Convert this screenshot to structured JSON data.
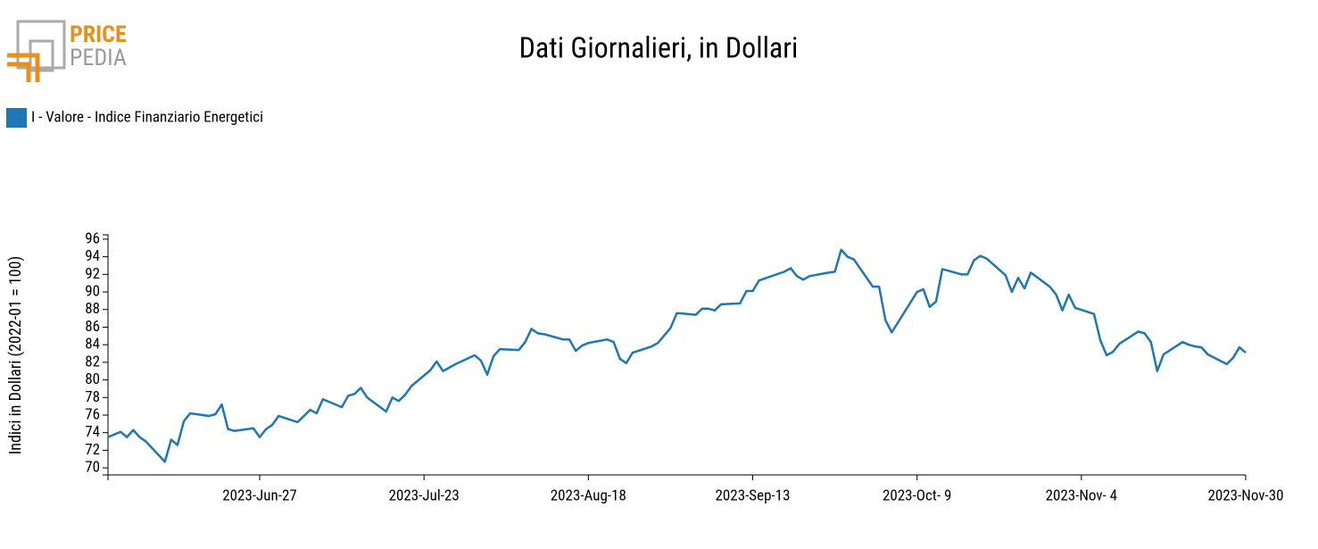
{
  "logo": {
    "top": "PRICE",
    "bottom": "PEDIA"
  },
  "chart_data": {
    "type": "line",
    "title": "Dati Giornalieri, in Dollari",
    "y_label": "Indici in Dollari (2022-01 = 100)",
    "legend_position": "top-left",
    "xlim": [
      "2023-06-03",
      "2023-11-30"
    ],
    "xticks": [
      {
        "value": "2023-06-27",
        "label": "2023-Jun-27"
      },
      {
        "value": "2023-07-23",
        "label": "2023-Jul-23"
      },
      {
        "value": "2023-08-18",
        "label": "2023-Aug-18"
      },
      {
        "value": "2023-09-13",
        "label": "2023-Sep-13"
      },
      {
        "value": "2023-10-09",
        "label": "2023-Oct- 9"
      },
      {
        "value": "2023-11-04",
        "label": "2023-Nov- 4"
      },
      {
        "value": "2023-11-30",
        "label": "2023-Nov-30"
      }
    ],
    "ylim": [
      69.2,
      96.5
    ],
    "yticks": [
      70,
      72,
      74,
      76,
      78,
      80,
      82,
      84,
      86,
      88,
      90,
      92,
      94,
      96
    ],
    "x": [
      "2023-06-03",
      "2023-06-05",
      "2023-06-06",
      "2023-06-07",
      "2023-06-08",
      "2023-06-09",
      "2023-06-12",
      "2023-06-13",
      "2023-06-14",
      "2023-06-15",
      "2023-06-16",
      "2023-06-19",
      "2023-06-20",
      "2023-06-21",
      "2023-06-22",
      "2023-06-23",
      "2023-06-26",
      "2023-06-27",
      "2023-06-28",
      "2023-06-29",
      "2023-06-30",
      "2023-07-03",
      "2023-07-05",
      "2023-07-06",
      "2023-07-07",
      "2023-07-10",
      "2023-07-11",
      "2023-07-12",
      "2023-07-13",
      "2023-07-14",
      "2023-07-17",
      "2023-07-18",
      "2023-07-19",
      "2023-07-20",
      "2023-07-21",
      "2023-07-24",
      "2023-07-25",
      "2023-07-26",
      "2023-07-28",
      "2023-07-31",
      "2023-08-01",
      "2023-08-02",
      "2023-08-03",
      "2023-08-04",
      "2023-08-07",
      "2023-08-08",
      "2023-08-09",
      "2023-08-10",
      "2023-08-11",
      "2023-08-14",
      "2023-08-15",
      "2023-08-16",
      "2023-08-17",
      "2023-08-18",
      "2023-08-21",
      "2023-08-22",
      "2023-08-23",
      "2023-08-24",
      "2023-08-25",
      "2023-08-28",
      "2023-08-29",
      "2023-08-31",
      "2023-09-01",
      "2023-09-04",
      "2023-09-05",
      "2023-09-06",
      "2023-09-07",
      "2023-09-08",
      "2023-09-11",
      "2023-09-12",
      "2023-09-13",
      "2023-09-14",
      "2023-09-18",
      "2023-09-19",
      "2023-09-20",
      "2023-09-21",
      "2023-09-22",
      "2023-09-25",
      "2023-09-26",
      "2023-09-27",
      "2023-09-28",
      "2023-09-29",
      "2023-10-02",
      "2023-10-03",
      "2023-10-04",
      "2023-10-05",
      "2023-10-09",
      "2023-10-10",
      "2023-10-11",
      "2023-10-12",
      "2023-10-13",
      "2023-10-16",
      "2023-10-17",
      "2023-10-18",
      "2023-10-19",
      "2023-10-20",
      "2023-10-23",
      "2023-10-24",
      "2023-10-25",
      "2023-10-26",
      "2023-10-27",
      "2023-10-30",
      "2023-10-31",
      "2023-11-01",
      "2023-11-02",
      "2023-11-03",
      "2023-11-06",
      "2023-11-07",
      "2023-11-08",
      "2023-11-09",
      "2023-11-10",
      "2023-11-13",
      "2023-11-14",
      "2023-11-15",
      "2023-11-16",
      "2023-11-17",
      "2023-11-20",
      "2023-11-21",
      "2023-11-22",
      "2023-11-23",
      "2023-11-24",
      "2023-11-27",
      "2023-11-28",
      "2023-11-29",
      "2023-11-30"
    ],
    "series": [
      {
        "name": "I - Valore - Indice Finanziario Energetici",
        "color": "#1f77b4",
        "values": [
          73.5,
          74.1,
          73.5,
          74.3,
          73.5,
          73.0,
          70.7,
          73.2,
          72.6,
          75.3,
          76.2,
          75.9,
          76.1,
          77.2,
          74.4,
          74.2,
          74.5,
          73.5,
          74.4,
          74.9,
          75.9,
          75.2,
          76.6,
          76.2,
          77.8,
          76.9,
          78.2,
          78.4,
          79.1,
          78.0,
          76.4,
          78.0,
          77.6,
          78.3,
          79.3,
          81.1,
          82.1,
          81.0,
          81.8,
          82.8,
          82.2,
          80.6,
          82.7,
          83.5,
          83.4,
          84.3,
          85.8,
          85.3,
          85.2,
          84.6,
          84.6,
          83.3,
          83.9,
          84.2,
          84.6,
          84.3,
          82.4,
          81.9,
          83.1,
          83.8,
          84.2,
          85.9,
          87.6,
          87.4,
          88.1,
          88.1,
          87.9,
          88.6,
          88.7,
          90.1,
          90.1,
          91.3,
          92.3,
          92.7,
          91.8,
          91.4,
          91.8,
          92.2,
          92.3,
          94.8,
          94.0,
          93.7,
          90.6,
          90.6,
          86.8,
          85.4,
          90.0,
          90.3,
          88.3,
          88.9,
          92.6,
          92.0,
          92.0,
          93.6,
          94.1,
          93.8,
          91.9,
          90.0,
          91.6,
          90.4,
          92.2,
          90.6,
          89.7,
          87.9,
          89.7,
          88.2,
          87.5,
          84.5,
          82.8,
          83.2,
          84.1,
          85.5,
          85.3,
          84.3,
          81.0,
          82.9,
          84.3,
          84.0,
          83.8,
          83.7,
          82.9,
          81.8,
          82.5,
          83.7,
          83.1
        ]
      }
    ]
  }
}
